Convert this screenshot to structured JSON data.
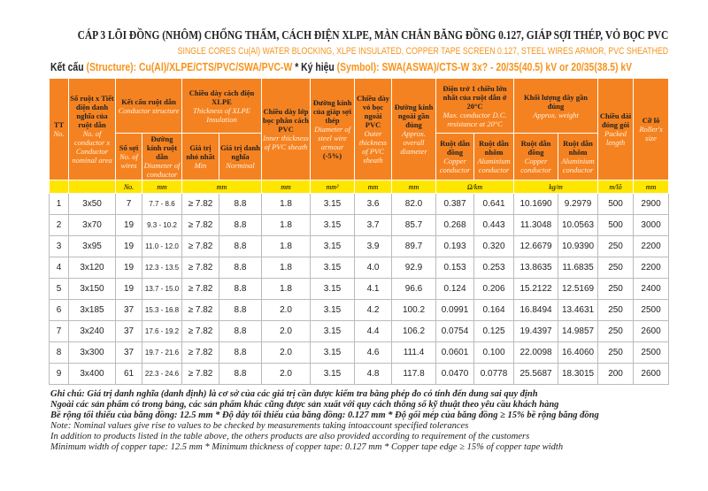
{
  "header": {
    "title": "CÁP 3 LÕI ĐỒNG (NHÔM) CHỐNG THẤM, CÁCH ĐIỆN XLPE, MÀN CHẮN BĂNG ĐỒNG 0.127, GIÁP SỢI THÉP, VỎ BỌC PVC",
    "subtitle": "SINGLE CORES Cu(Al) WATER BLOCKING, XLPE INSULATED, COPPER TAPE SCREEN 0.127, STEEL WIRES ARMOR,  PVC SHEATHED",
    "structure_label": "Kết cấu",
    "structure_value": "(Structure): Cu(Al)/XLPE/CTS/PVC/SWA/PVC-W",
    "separator": "*",
    "symbol_label": "Ký hiệu",
    "symbol_value": "(Symbol): SWA(ASWA)/CTS-W 3x? - 20/35(40.5) kV or 20/35(38.5) kV"
  },
  "table": {
    "groups": [
      {
        "vi": "Kết cấu ruột dẫn",
        "en": "Conductor structure"
      },
      {
        "vi": "Chiều dày cách điện XLPE",
        "en": "Thickness of XLPE Insulation"
      },
      {
        "vi": "Điện trở 1 chiều lớn nhất của ruột dẫn ở 20°C",
        "en": "Max. conductor D.C. resistance at 20°C"
      },
      {
        "vi": "Khối lượng dây gần đúng",
        "en": "Approx. weight"
      }
    ],
    "columns": [
      {
        "vi": "TT",
        "en": "No."
      },
      {
        "vi": "Số ruột x Tiết diện danh nghĩa của ruột dẫn",
        "en": "No. of conductor x Conductor nominal area"
      },
      {
        "vi": "Số sợi",
        "en": "No. of wires"
      },
      {
        "vi": "Đường kính ruột dẫn",
        "en": "Diameter of conductor"
      },
      {
        "vi": "Giá trị nhỏ nhất",
        "en": "Min"
      },
      {
        "vi": "Giá trị danh nghĩa",
        "en": "Norminal"
      },
      {
        "vi": "Chiều dày lớp bọc phân cách PVC",
        "en": "Inner thickness of PVC sheath"
      },
      {
        "vi": "Đường kính của giáp sợi thép",
        "en": "Diameter of steel wire armour",
        "note": "(-5%)"
      },
      {
        "vi": "Chiều dày vỏ bọc ngoài PVC",
        "en": "Outer thickness of PVC sheath"
      },
      {
        "vi": "Đường kính ngoài gần đúng",
        "en": "Approx. overall diameter"
      },
      {
        "vi": "Ruột dẫn đồng",
        "en": "Copper conductor"
      },
      {
        "vi": "Ruột dẫn nhôm",
        "en": "Aluminium conductor"
      },
      {
        "vi": "Ruột dẫn đồng",
        "en": "Copper conductor"
      },
      {
        "vi": "Ruột dẫn nhôm",
        "en": "Aluminium conductor"
      },
      {
        "vi": "Chiều dài đóng gói",
        "en": "Packed length"
      },
      {
        "vi": "Cỡ lô",
        "en": "Roller's size"
      }
    ],
    "units": [
      null,
      null,
      "No.",
      "mm",
      "mm",
      "mm",
      "mm²",
      "mm",
      "mm",
      "Ω/km",
      "kg/m",
      "m/lô",
      "mm"
    ],
    "rows": [
      [
        "1",
        "3x50",
        "7",
        "7.7 - 8.6",
        "≥ 7.82",
        "8.8",
        "1.8",
        "3.15",
        "3.6",
        "82.0",
        "0.387",
        "0.641",
        "10.1690",
        "9.2979",
        "500",
        "2900"
      ],
      [
        "2",
        "3x70",
        "19",
        "9.3 - 10.2",
        "≥ 7.82",
        "8.8",
        "1.8",
        "3.15",
        "3.7",
        "85.7",
        "0.268",
        "0.443",
        "11.3048",
        "10.0563",
        "500",
        "3000"
      ],
      [
        "3",
        "3x95",
        "19",
        "11.0 - 12.0",
        "≥ 7.82",
        "8.8",
        "1.8",
        "3.15",
        "3.9",
        "89.7",
        "0.193",
        "0.320",
        "12.6679",
        "10.9390",
        "250",
        "2200"
      ],
      [
        "4",
        "3x120",
        "19",
        "12.3 - 13.5",
        "≥ 7.82",
        "8.8",
        "1.8",
        "3.15",
        "4.0",
        "92.9",
        "0.153",
        "0.253",
        "13.8635",
        "11.6835",
        "250",
        "2200"
      ],
      [
        "5",
        "3x150",
        "19",
        "13.7 - 15.0",
        "≥ 7.82",
        "8.8",
        "1.8",
        "3.15",
        "4.1",
        "96.6",
        "0.124",
        "0.206",
        "15.2122",
        "12.5169",
        "250",
        "2400"
      ],
      [
        "6",
        "3x185",
        "37",
        "15.3 - 16.8",
        "≥ 7.82",
        "8.8",
        "2.0",
        "3.15",
        "4.2",
        "100.2",
        "0.0991",
        "0.164",
        "16.8494",
        "13.4631",
        "250",
        "2500"
      ],
      [
        "7",
        "3x240",
        "37",
        "17.6 - 19.2",
        "≥ 7.82",
        "8.8",
        "2.0",
        "3.15",
        "4.4",
        "106.2",
        "0.0754",
        "0.125",
        "19.4397",
        "14.9857",
        "250",
        "2600"
      ],
      [
        "8",
        "3x300",
        "37",
        "19.7 - 21.6",
        "≥ 7.82",
        "8.8",
        "2.0",
        "3.15",
        "4.6",
        "111.4",
        "0.0601",
        "0.100",
        "22.0098",
        "16.4060",
        "250",
        "2500"
      ],
      [
        "9",
        "3x400",
        "61",
        "22.3 - 24.6",
        "≥ 7.82",
        "8.8",
        "2.0",
        "3.15",
        "4.8",
        "117.8",
        "0.0470",
        "0.0778",
        "25.5687",
        "18.3015",
        "200",
        "2600"
      ]
    ]
  },
  "notes": [
    "Ghi chú: Giá trị danh nghĩa (danh định) là cơ sở của các giá trị cần được kiểm tra bằng phép đo có tính đến dung sai quy định",
    "Ngoài các sản phẩm có trong bảng, các sản phẩm khác cũng được sản xuất với quy cách thông số kỹ thuật theo yêu cầu khách hàng",
    "Bề rộng tối thiểu của băng đồng: 12.5 mm * Độ dày tối thiểu của băng đồng: 0.127 mm * Độ gối mép của băng đồng ≥ 15% bề rộng băng đồng",
    "Note: Nominal values give rise to values to be checked by measurements taking intoaccount specified tolerances",
    "In addition to products listed in the table above, the others products are also provided according to requirement of the customers",
    "Minimum width of copper tape: 12.5 mm * Minimum thickness of copper tape: 0.127 mm * Copper tape edge ≥ 15% of copper tape width"
  ]
}
